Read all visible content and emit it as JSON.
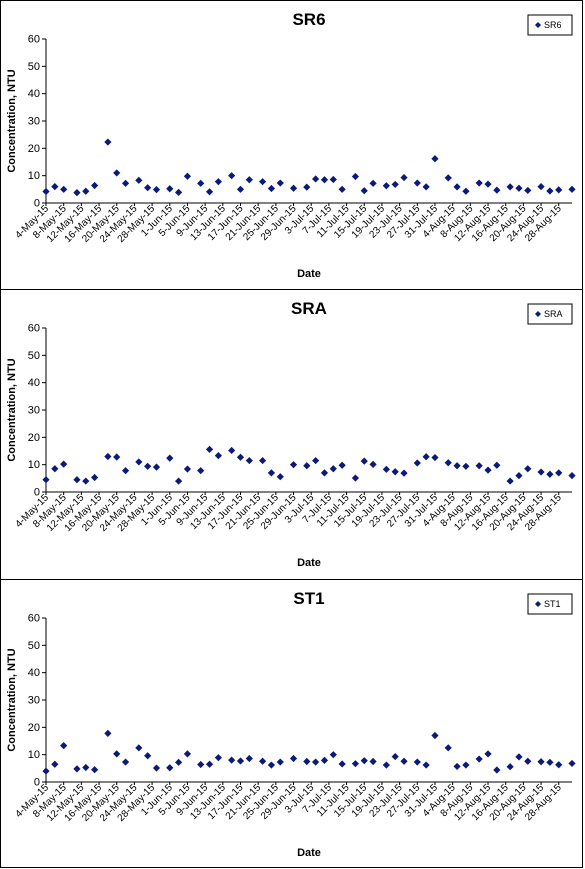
{
  "x_date_labels": [
    "4-May-15",
    "8-May-15",
    "12-May-15",
    "16-May-15",
    "20-May-15",
    "24-May-15",
    "28-May-15",
    "1-Jun-15",
    "5-Jun-15",
    "9-Jun-15",
    "13-Jun-15",
    "17-Jun-15",
    "21-Jun-15",
    "25-Jun-15",
    "29-Jun-15",
    "3-Jul-15",
    "7-Jul-15",
    "11-Jul-15",
    "15-Jul-15",
    "19-Jul-15",
    "23-Jul-15",
    "27-Jul-15",
    "31-Jul-15",
    "4-Aug-15",
    "8-Aug-15",
    "12-Aug-15",
    "16-Aug-15",
    "20-Aug-15",
    "24-Aug-15",
    "28-Aug-15"
  ],
  "chart_data": [
    {
      "type": "scatter",
      "title": "SR6",
      "xlabel": "Date",
      "ylabel": "Concentration, NTU",
      "ylim": [
        0,
        60
      ],
      "yticks": [
        0,
        10,
        20,
        30,
        40,
        50,
        60
      ],
      "grid": false,
      "legend_position": "top-right",
      "series": [
        {
          "name": "SR6",
          "color": "#0a1a7a",
          "x": [
            "4-May-15",
            "6-May-15",
            "8-May-15",
            "11-May-15",
            "13-May-15",
            "15-May-15",
            "18-May-15",
            "20-May-15",
            "22-May-15",
            "25-May-15",
            "27-May-15",
            "29-May-15",
            "1-Jun-15",
            "3-Jun-15",
            "5-Jun-15",
            "8-Jun-15",
            "10-Jun-15",
            "12-Jun-15",
            "15-Jun-15",
            "17-Jun-15",
            "19-Jun-15",
            "22-Jun-15",
            "24-Jun-15",
            "26-Jun-15",
            "29-Jun-15",
            "2-Jul-15",
            "4-Jul-15",
            "6-Jul-15",
            "8-Jul-15",
            "10-Jul-15",
            "13-Jul-15",
            "15-Jul-15",
            "17-Jul-15",
            "20-Jul-15",
            "22-Jul-15",
            "24-Jul-15",
            "27-Jul-15",
            "29-Jul-15",
            "31-Jul-15",
            "3-Aug-15",
            "5-Aug-15",
            "7-Aug-15",
            "10-Aug-15",
            "12-Aug-15",
            "14-Aug-15",
            "17-Aug-15",
            "19-Aug-15",
            "21-Aug-15",
            "24-Aug-15",
            "26-Aug-15",
            "28-Aug-15",
            "31-Aug-15"
          ],
          "y": [
            4.2,
            6,
            5,
            3.8,
            4.3,
            6.4,
            22.3,
            11,
            7.2,
            8.3,
            5.6,
            4.9,
            5.2,
            3.9,
            9.8,
            7.2,
            4.1,
            7.8,
            10,
            5,
            8.5,
            7.8,
            5.3,
            7.3,
            5.4,
            5.8,
            8.8,
            8.5,
            8.6,
            5,
            9.7,
            4.5,
            7.2,
            6.3,
            6.8,
            9.3,
            7.3,
            5.9,
            16.2,
            9.2,
            5.9,
            4.3,
            7.3,
            6.9,
            4.7,
            5.9,
            5.4,
            4.6,
            6,
            4.4,
            4.8,
            5
          ]
        }
      ]
    },
    {
      "type": "scatter",
      "title": "SRA",
      "xlabel": "Date",
      "ylabel": "Concentration, NTU",
      "ylim": [
        0,
        60
      ],
      "yticks": [
        0,
        10,
        20,
        30,
        40,
        50,
        60
      ],
      "grid": false,
      "legend_position": "top-right",
      "series": [
        {
          "name": "SRA",
          "color": "#0a1a7a",
          "x": [
            "4-May-15",
            "6-May-15",
            "8-May-15",
            "11-May-15",
            "13-May-15",
            "15-May-15",
            "18-May-15",
            "20-May-15",
            "22-May-15",
            "25-May-15",
            "27-May-15",
            "29-May-15",
            "1-Jun-15",
            "3-Jun-15",
            "5-Jun-15",
            "8-Jun-15",
            "10-Jun-15",
            "12-Jun-15",
            "15-Jun-15",
            "17-Jun-15",
            "19-Jun-15",
            "22-Jun-15",
            "24-Jun-15",
            "26-Jun-15",
            "29-Jun-15",
            "2-Jul-15",
            "4-Jul-15",
            "6-Jul-15",
            "8-Jul-15",
            "10-Jul-15",
            "13-Jul-15",
            "15-Jul-15",
            "17-Jul-15",
            "20-Jul-15",
            "22-Jul-15",
            "24-Jul-15",
            "27-Jul-15",
            "29-Jul-15",
            "31-Jul-15",
            "3-Aug-15",
            "5-Aug-15",
            "7-Aug-15",
            "10-Aug-15",
            "12-Aug-15",
            "14-Aug-15",
            "17-Aug-15",
            "19-Aug-15",
            "21-Aug-15",
            "24-Aug-15",
            "26-Aug-15",
            "28-Aug-15",
            "31-Aug-15"
          ],
          "y": [
            4.5,
            8.5,
            10.2,
            4.5,
            4,
            5.3,
            13,
            12.8,
            7.8,
            11,
            9.4,
            9.1,
            12.4,
            4,
            8.4,
            7.8,
            15.6,
            13.3,
            15.2,
            12.7,
            11.5,
            11.5,
            7,
            5.6,
            10,
            9.6,
            11.5,
            7,
            8.5,
            9.8,
            5.1,
            11.3,
            10.1,
            8.3,
            7.4,
            6.9,
            10.6,
            12.9,
            12.6,
            10.7,
            9.6,
            9.4,
            9.6,
            8,
            9.8,
            4,
            6,
            8.5,
            7.3,
            6.5,
            7,
            6
          ]
        }
      ]
    },
    {
      "type": "scatter",
      "title": "ST1",
      "xlabel": "Date",
      "ylabel": "Concentration, NTU",
      "ylim": [
        0,
        60
      ],
      "yticks": [
        0,
        10,
        20,
        30,
        40,
        50,
        60
      ],
      "grid": false,
      "legend_position": "top-right",
      "series": [
        {
          "name": "ST1",
          "color": "#0a1a7a",
          "x": [
            "4-May-15",
            "6-May-15",
            "8-May-15",
            "11-May-15",
            "13-May-15",
            "15-May-15",
            "18-May-15",
            "20-May-15",
            "22-May-15",
            "25-May-15",
            "27-May-15",
            "29-May-15",
            "1-Jun-15",
            "3-Jun-15",
            "5-Jun-15",
            "8-Jun-15",
            "10-Jun-15",
            "12-Jun-15",
            "15-Jun-15",
            "17-Jun-15",
            "19-Jun-15",
            "22-Jun-15",
            "24-Jun-15",
            "26-Jun-15",
            "29-Jun-15",
            "2-Jul-15",
            "4-Jul-15",
            "6-Jul-15",
            "8-Jul-15",
            "10-Jul-15",
            "13-Jul-15",
            "15-Jul-15",
            "17-Jul-15",
            "20-Jul-15",
            "22-Jul-15",
            "24-Jul-15",
            "27-Jul-15",
            "29-Jul-15",
            "31-Jul-15",
            "3-Aug-15",
            "5-Aug-15",
            "7-Aug-15",
            "10-Aug-15",
            "12-Aug-15",
            "14-Aug-15",
            "17-Aug-15",
            "19-Aug-15",
            "21-Aug-15",
            "24-Aug-15",
            "26-Aug-15",
            "28-Aug-15",
            "31-Aug-15"
          ],
          "y": [
            4,
            6.5,
            13.3,
            4.8,
            5.3,
            4.5,
            17.8,
            10.3,
            7.3,
            12.5,
            9.6,
            5.1,
            5.2,
            7.2,
            10.3,
            6.4,
            6.5,
            8.9,
            8,
            7.7,
            8.6,
            7.6,
            6.2,
            7.3,
            8.6,
            7.5,
            7.3,
            7.9,
            10,
            6.6,
            6.7,
            7.8,
            7.5,
            6.2,
            9.3,
            7.6,
            7.3,
            6.2,
            17,
            12.5,
            5.7,
            6.2,
            8.4,
            10.3,
            4.4,
            5.6,
            9.2,
            7.6,
            7.4,
            7.2,
            6.3,
            6.8
          ]
        }
      ]
    }
  ]
}
